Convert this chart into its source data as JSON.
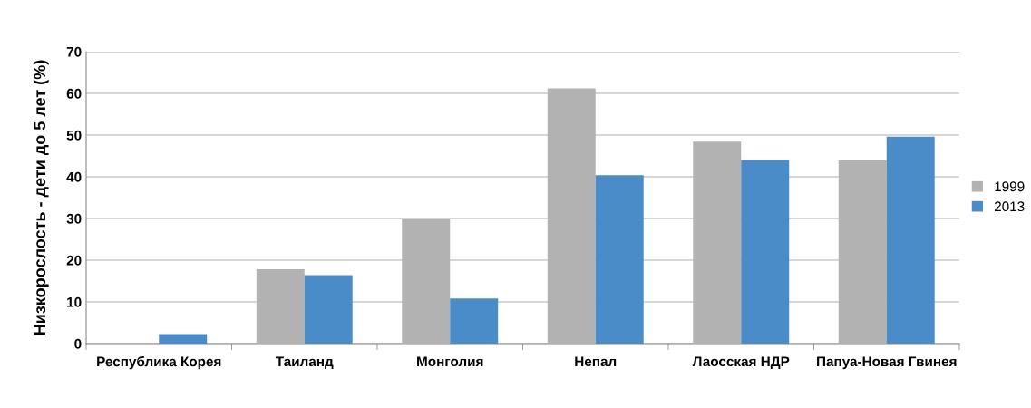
{
  "chart_data": {
    "type": "bar",
    "ylabel": "Низкорослость - дети до 5 лет (%)",
    "categories": [
      "Республика Корея",
      "Таиланд",
      "Монголия",
      "Непал",
      "Лаосская НДР",
      "Папуа-Новая Гвинея"
    ],
    "series": [
      {
        "name": "1999",
        "color": "#b2b2b2",
        "values": [
          null,
          17.8,
          30,
          61.2,
          48.4,
          43.9
        ]
      },
      {
        "name": "2013",
        "color": "#4a8cc8",
        "values": [
          2.3,
          16.4,
          10.8,
          40.4,
          44,
          49.6
        ]
      }
    ],
    "ylim": [
      0,
      70
    ],
    "yticks": [
      0,
      10,
      20,
      30,
      40,
      50,
      60,
      70
    ],
    "grid": "y",
    "legend": "right"
  }
}
